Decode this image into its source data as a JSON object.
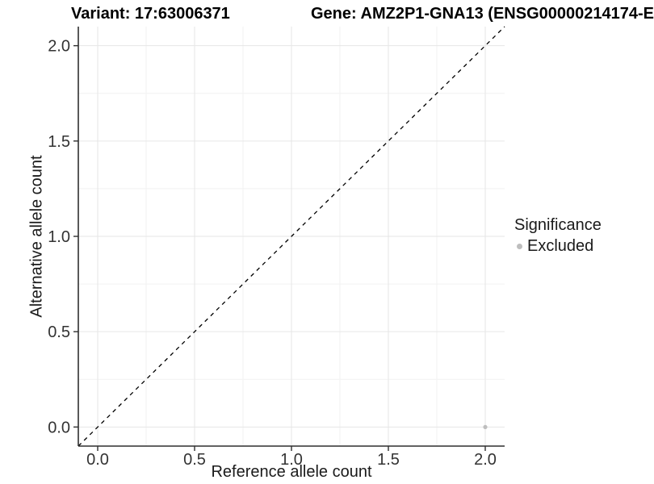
{
  "chart_data": {
    "type": "scatter",
    "title_left": "Variant: 17:63006371",
    "title_right": "Gene: AMZ2P1-GNA13 (ENSG00000214174-E",
    "xlabel": "Reference allele count",
    "ylabel": "Alternative allele count",
    "xlim": [
      -0.1,
      2.1
    ],
    "ylim": [
      -0.1,
      2.1
    ],
    "xticks": {
      "values": [
        0,
        0.5,
        1,
        1.5,
        2
      ],
      "labels": [
        "0.0",
        "0.5",
        "1.0",
        "1.5",
        "2.0"
      ]
    },
    "yticks": {
      "values": [
        0,
        0.5,
        1,
        1.5,
        2
      ],
      "labels": [
        "0.0",
        "0.5",
        "1.0",
        "1.5",
        "2.0"
      ]
    },
    "minor_gridlines": [
      0.25,
      0.75,
      1.25,
      1.75
    ],
    "grid": true,
    "identity_line": {
      "style": "dashed",
      "from": -0.1,
      "to": 2.1,
      "color": "#000000"
    },
    "series": [
      {
        "name": "Excluded",
        "color": "#bebebe",
        "points": [
          {
            "x": 2.0,
            "y": 0.0
          }
        ]
      }
    ],
    "legend": {
      "title": "Significance",
      "position": "right",
      "items": [
        {
          "label": "Excluded",
          "color": "#bebebe"
        }
      ]
    },
    "colors": {
      "grid_major": "#e6e6e6",
      "grid_minor": "#f2f2f2",
      "axis_line": "#2f2f2f",
      "tick_text": "#333333",
      "title_text": "#000000",
      "point": "#bebebe"
    }
  }
}
